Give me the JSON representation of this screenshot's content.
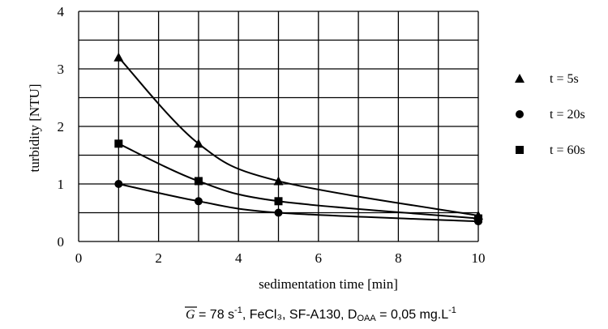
{
  "chart_data": {
    "type": "line",
    "xlabel": "sedimentation time  [min]",
    "ylabel": "turbidity  [NTU]",
    "xlim": [
      0,
      10
    ],
    "ylim": [
      0,
      4
    ],
    "x_ticks": [
      "0",
      "2",
      "4",
      "6",
      "8",
      "10"
    ],
    "y_ticks": [
      "0",
      "1",
      "2",
      "3",
      "4"
    ],
    "grid": true,
    "legend_position": "right",
    "series": [
      {
        "name": "t = 5s",
        "marker": "triangle",
        "x": [
          1,
          3,
          5,
          10
        ],
        "y": [
          3.2,
          1.7,
          1.05,
          0.45
        ]
      },
      {
        "name": "t = 20s",
        "marker": "circle",
        "x": [
          1,
          3,
          5,
          10
        ],
        "y": [
          1.0,
          0.7,
          0.5,
          0.35
        ]
      },
      {
        "name": "t = 60s",
        "marker": "square",
        "x": [
          1,
          3,
          5,
          10
        ],
        "y": [
          1.7,
          1.05,
          0.7,
          0.4
        ]
      }
    ],
    "caption": {
      "g_symbol": "G",
      "text_a": " = 78 s",
      "sup_a": "-1",
      "text_b": ", FeCl₃, SF-A130, D",
      "sub_b": "OAA",
      "text_c": " = 0,05 mg.L",
      "sup_c": "-1"
    }
  }
}
